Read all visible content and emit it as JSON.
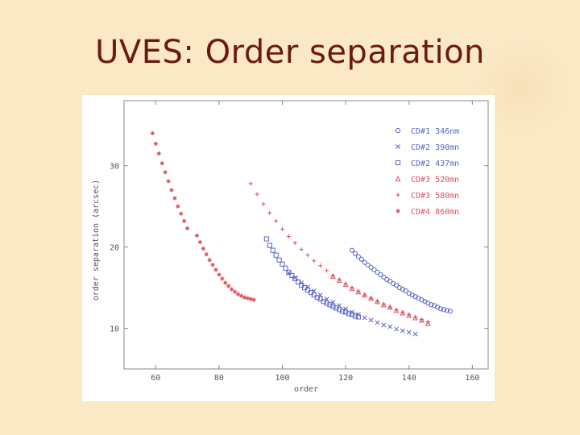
{
  "slide": {
    "title": "UVES: Order separation"
  },
  "colors": {
    "title": "#6b1a10",
    "blue": "#5b66c8",
    "red": "#e0505a"
  },
  "chart_data": {
    "type": "scatter",
    "xlabel": "order",
    "ylabel": "order separation (arcsec)",
    "xlim": [
      50,
      165
    ],
    "ylim": [
      5,
      38
    ],
    "x_ticks": [
      "60",
      "80",
      "100",
      "120",
      "140",
      "160"
    ],
    "y_ticks": [
      "10",
      "20",
      "30"
    ],
    "grid": false,
    "legend_position": "top-right",
    "series": [
      {
        "name": "CD#1 346nm",
        "marker": "circle",
        "color": "#5b66c8",
        "x": [
          122,
          123,
          124,
          125,
          126,
          127,
          128,
          129,
          130,
          131,
          132,
          133,
          134,
          135,
          136,
          137,
          138,
          139,
          140,
          141,
          142,
          143,
          144,
          145,
          146,
          147,
          148,
          149,
          150,
          151,
          152,
          153
        ],
        "y": [
          19.6,
          19.2,
          18.8,
          18.5,
          18.1,
          17.8,
          17.5,
          17.2,
          16.9,
          16.6,
          16.3,
          16.0,
          15.8,
          15.5,
          15.3,
          15.0,
          14.8,
          14.6,
          14.3,
          14.1,
          13.9,
          13.7,
          13.5,
          13.3,
          13.1,
          12.9,
          12.8,
          12.6,
          12.4,
          12.3,
          12.2,
          12.1
        ]
      },
      {
        "name": "CD#2 390mn",
        "marker": "x",
        "color": "#5b66c8",
        "x": [
          102,
          104,
          106,
          108,
          110,
          112,
          114,
          116,
          118,
          120,
          122,
          124,
          126,
          128,
          130,
          132,
          134,
          136,
          138,
          140,
          142
        ],
        "y": [
          16.8,
          16.2,
          15.6,
          15.1,
          14.6,
          14.1,
          13.6,
          13.2,
          12.8,
          12.4,
          12.0,
          11.7,
          11.3,
          11.0,
          10.7,
          10.4,
          10.2,
          9.9,
          9.7,
          9.5,
          9.3
        ]
      },
      {
        "name": "CD#2 437mn",
        "marker": "square",
        "color": "#5b66c8",
        "x": [
          95,
          96,
          97,
          98,
          99,
          100,
          101,
          102,
          103,
          104,
          105,
          106,
          107,
          108,
          109,
          110,
          111,
          112,
          113,
          114,
          115,
          116,
          117,
          118,
          119,
          120,
          121,
          122,
          123,
          124
        ],
        "y": [
          21.0,
          20.2,
          19.6,
          19.0,
          18.4,
          17.9,
          17.4,
          16.9,
          16.5,
          16.1,
          15.7,
          15.3,
          15.0,
          14.7,
          14.4,
          14.1,
          13.8,
          13.6,
          13.3,
          13.1,
          12.9,
          12.7,
          12.5,
          12.3,
          12.1,
          12.0,
          11.8,
          11.7,
          11.5,
          11.4
        ]
      },
      {
        "name": "CD#3 520mn",
        "marker": "triangle",
        "color": "#e0505a",
        "x": [
          116,
          118,
          120,
          122,
          124,
          126,
          128,
          130,
          132,
          134,
          136,
          138,
          140,
          142,
          144,
          146
        ],
        "y": [
          16.4,
          15.9,
          15.4,
          14.9,
          14.5,
          14.1,
          13.7,
          13.3,
          12.9,
          12.6,
          12.2,
          11.9,
          11.6,
          11.3,
          11.0,
          10.6
        ]
      },
      {
        "name": "CD#3 580mn",
        "marker": "plus",
        "color": "#e0505a",
        "x": [
          90,
          92,
          94,
          96,
          98,
          100,
          102,
          104,
          106,
          108,
          110,
          112,
          114,
          116,
          118,
          120,
          122,
          124,
          126,
          128,
          130,
          132,
          134,
          136,
          138,
          140,
          142,
          144,
          146
        ],
        "y": [
          27.8,
          26.5,
          25.3,
          24.2,
          23.2,
          22.2,
          21.3,
          20.5,
          19.7,
          19.0,
          18.3,
          17.7,
          17.1,
          16.5,
          16.0,
          15.5,
          15.0,
          14.6,
          14.1,
          13.7,
          13.3,
          13.0,
          12.6,
          12.3,
          12.0,
          11.7,
          11.4,
          11.1,
          10.8
        ]
      },
      {
        "name": "CD#4 860mn",
        "marker": "asterisk",
        "color": "#e0505a",
        "x": [
          59,
          60,
          61,
          62,
          63,
          64,
          65,
          66,
          67,
          68,
          69,
          70,
          73,
          74,
          75,
          76,
          77,
          78,
          79,
          80,
          81,
          82,
          83,
          84,
          85,
          86,
          87,
          88,
          89,
          90,
          91
        ],
        "y": [
          34.0,
          32.7,
          31.5,
          30.3,
          29.2,
          28.1,
          27.0,
          26.0,
          25.0,
          24.1,
          23.2,
          22.3,
          21.4,
          20.6,
          19.8,
          19.1,
          18.4,
          17.8,
          17.2,
          16.6,
          16.1,
          15.6,
          15.2,
          14.8,
          14.5,
          14.2,
          14.0,
          13.8,
          13.7,
          13.6,
          13.5
        ]
      }
    ]
  }
}
